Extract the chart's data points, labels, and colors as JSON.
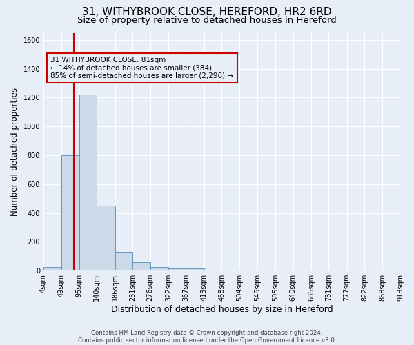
{
  "title": "31, WITHYBROOK CLOSE, HEREFORD, HR2 6RD",
  "subtitle": "Size of property relative to detached houses in Hereford",
  "xlabel": "Distribution of detached houses by size in Hereford",
  "ylabel": "Number of detached properties",
  "footer_line1": "Contains HM Land Registry data © Crown copyright and database right 2024.",
  "footer_line2": "Contains public sector information licensed under the Open Government Licence v3.0.",
  "bin_edges": [
    4,
    49,
    95,
    140,
    186,
    231,
    276,
    322,
    367,
    413,
    458,
    504,
    549,
    595,
    640,
    686,
    731,
    777,
    822,
    868,
    913
  ],
  "bar_heights": [
    25,
    800,
    1220,
    450,
    130,
    60,
    25,
    15,
    15,
    5,
    0,
    0,
    0,
    0,
    0,
    0,
    0,
    0,
    0,
    0
  ],
  "bar_color": "#ccd9e8",
  "bar_edge_color": "#6699bb",
  "property_size": 81,
  "annotation_line1": "31 WITHYBROOK CLOSE: 81sqm",
  "annotation_line2": "← 14% of detached houses are smaller (384)",
  "annotation_line3": "85% of semi-detached houses are larger (2,296) →",
  "annotation_box_color": "#cc0000",
  "vline_color": "#cc0000",
  "ylim": [
    0,
    1650
  ],
  "yticks": [
    0,
    200,
    400,
    600,
    800,
    1000,
    1200,
    1400,
    1600
  ],
  "bg_color": "#e8eef8",
  "grid_color": "#ffffff",
  "title_fontsize": 11,
  "subtitle_fontsize": 9.5,
  "tick_label_fontsize": 7,
  "ylabel_fontsize": 8.5,
  "xlabel_fontsize": 9
}
